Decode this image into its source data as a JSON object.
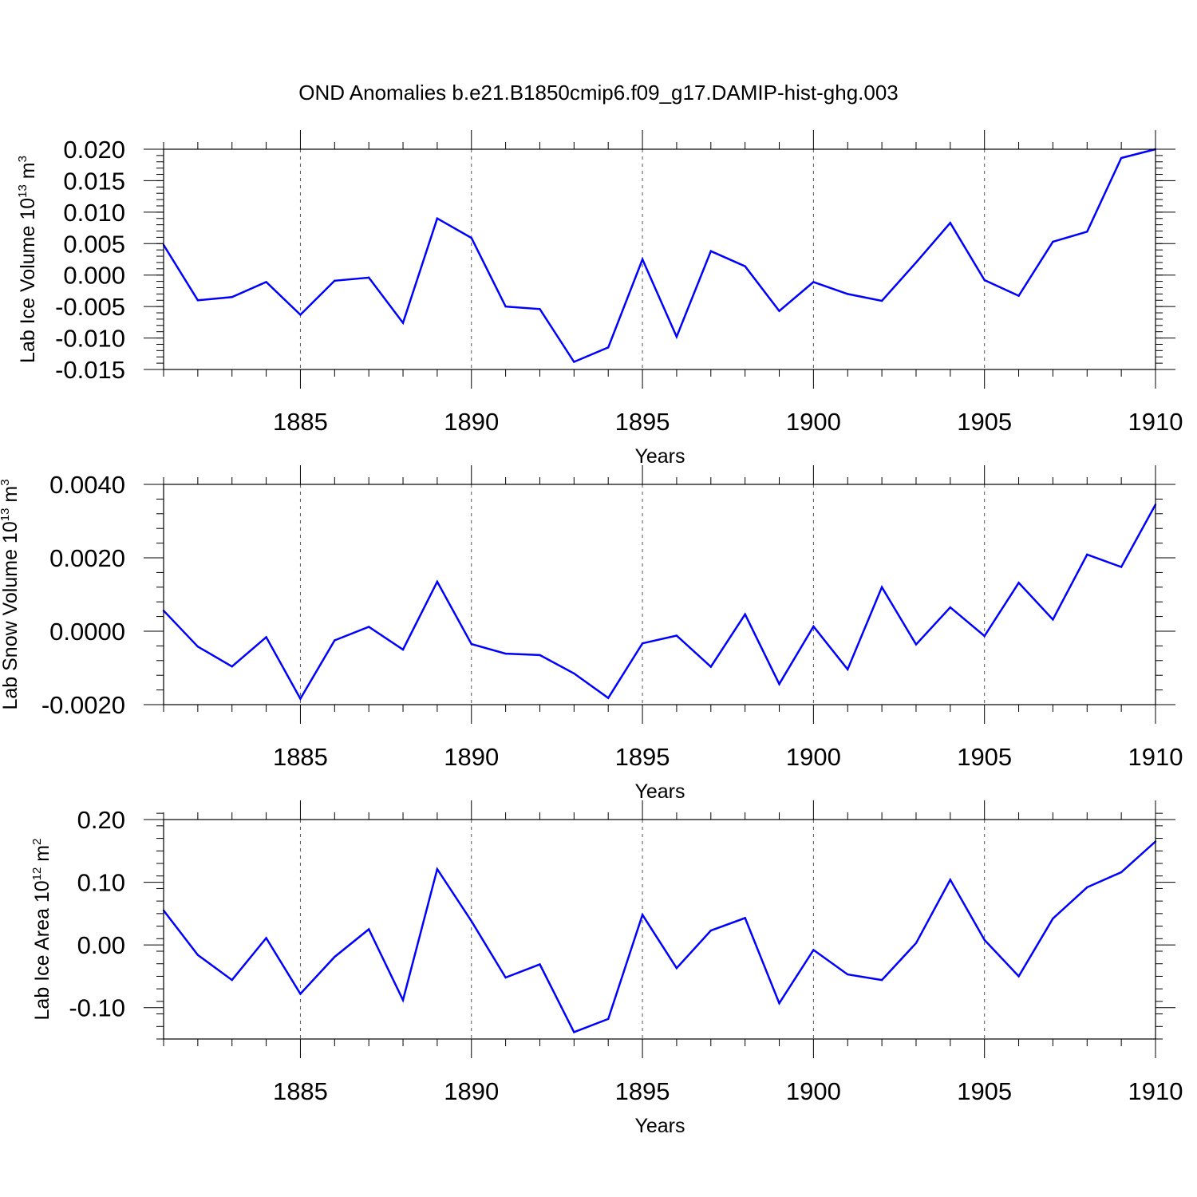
{
  "title": "OND Anomalies b.e21.B1850cmip6.f09_g17.DAMIP-hist-ghg.003",
  "colors": {
    "line": "#0000ff",
    "axes": "#000000",
    "grid": "#555555"
  },
  "chart_data": [
    {
      "type": "line",
      "xlabel": "Years",
      "ylabel": {
        "main": "Lab Ice Volume 10",
        "exp": "13",
        "unit": " m",
        "unit_exp": "3"
      },
      "xlim": [
        1881,
        1910
      ],
      "ylim": [
        -0.015,
        0.02
      ],
      "xticks": [
        1885,
        1890,
        1895,
        1900,
        1905,
        1910
      ],
      "xtick_labels": [
        "1885",
        "1890",
        "1895",
        "1900",
        "1905",
        "1910"
      ],
      "yticks": [
        -0.015,
        -0.01,
        -0.005,
        0.0,
        0.005,
        0.01,
        0.015,
        0.02
      ],
      "ytick_labels": [
        "-0.015",
        "-0.010",
        "-0.005",
        "0.000",
        "0.005",
        "0.010",
        "0.015",
        "0.020"
      ],
      "y_minor_step": 0.001,
      "x": [
        1881,
        1882,
        1883,
        1884,
        1885,
        1886,
        1887,
        1888,
        1889,
        1890,
        1891,
        1892,
        1893,
        1894,
        1895,
        1896,
        1897,
        1898,
        1899,
        1900,
        1901,
        1902,
        1903,
        1904,
        1905,
        1906,
        1907,
        1908,
        1909,
        1910
      ],
      "series": [
        {
          "values": [
            0.0048,
            -0.004,
            -0.0035,
            -0.0011,
            -0.0063,
            -0.0009,
            -0.0004,
            -0.0076,
            0.009,
            0.0059,
            -0.005,
            -0.0054,
            -0.0138,
            -0.0115,
            0.0025,
            -0.0098,
            0.0038,
            0.0014,
            -0.0057,
            -0.0011,
            -0.003,
            -0.0041,
            0.002,
            0.0083,
            -0.0008,
            -0.0033,
            0.0053,
            0.0069,
            0.0186,
            0.02
          ]
        }
      ]
    },
    {
      "type": "line",
      "xlabel": "Years",
      "ylabel": {
        "main": "Lab Snow Volume 10",
        "exp": "13",
        "unit": " m",
        "unit_exp": "3"
      },
      "xlim": [
        1881,
        1910
      ],
      "ylim": [
        -0.002,
        0.004
      ],
      "xticks": [
        1885,
        1890,
        1895,
        1900,
        1905,
        1910
      ],
      "xtick_labels": [
        "1885",
        "1890",
        "1895",
        "1900",
        "1905",
        "1910"
      ],
      "yticks": [
        -0.002,
        0.0,
        0.002,
        0.004
      ],
      "ytick_labels": [
        "-0.0020",
        "0.0000",
        "0.0020",
        "0.0040"
      ],
      "y_minor_step": 0.0004,
      "x": [
        1881,
        1882,
        1883,
        1884,
        1885,
        1886,
        1887,
        1888,
        1889,
        1890,
        1891,
        1892,
        1893,
        1894,
        1895,
        1896,
        1897,
        1898,
        1899,
        1900,
        1901,
        1902,
        1903,
        1904,
        1905,
        1906,
        1907,
        1908,
        1909,
        1910
      ],
      "series": [
        {
          "values": [
            0.00056,
            -0.00042,
            -0.00096,
            -0.00016,
            -0.00184,
            -0.00025,
            0.00012,
            -0.0005,
            0.00135,
            -0.00035,
            -0.00061,
            -0.00065,
            -0.00115,
            -0.00182,
            -0.00033,
            -0.00012,
            -0.00097,
            0.00046,
            -0.00144,
            0.00013,
            -0.00104,
            0.0012,
            -0.00036,
            0.00065,
            -0.00013,
            0.00132,
            0.00032,
            0.00209,
            0.00175,
            0.00345
          ]
        }
      ]
    },
    {
      "type": "line",
      "xlabel": "Years",
      "ylabel": {
        "main": "Lab Ice Area 10",
        "exp": "12",
        "unit": " m",
        "unit_exp": "2"
      },
      "xlim": [
        1881,
        1910
      ],
      "ylim": [
        -0.15,
        0.2
      ],
      "xticks": [
        1885,
        1890,
        1895,
        1900,
        1905,
        1910
      ],
      "xtick_labels": [
        "1885",
        "1890",
        "1895",
        "1900",
        "1905",
        "1910"
      ],
      "yticks": [
        -0.1,
        0.0,
        0.1,
        0.2
      ],
      "ytick_labels": [
        "-0.10",
        "0.00",
        "0.10",
        "0.20"
      ],
      "y_minor_step": 0.02,
      "x": [
        1881,
        1882,
        1883,
        1884,
        1885,
        1886,
        1887,
        1888,
        1889,
        1890,
        1891,
        1892,
        1893,
        1894,
        1895,
        1896,
        1897,
        1898,
        1899,
        1900,
        1901,
        1902,
        1903,
        1904,
        1905,
        1906,
        1907,
        1908,
        1909,
        1910
      ],
      "series": [
        {
          "values": [
            0.055,
            -0.016,
            -0.056,
            0.011,
            -0.078,
            -0.019,
            0.025,
            -0.088,
            0.121,
            0.038,
            -0.052,
            -0.031,
            -0.139,
            -0.118,
            0.048,
            -0.037,
            0.023,
            0.043,
            -0.093,
            -0.008,
            -0.047,
            -0.056,
            0.003,
            0.104,
            0.008,
            -0.05,
            0.042,
            0.092,
            0.116,
            0.165
          ]
        }
      ]
    }
  ]
}
